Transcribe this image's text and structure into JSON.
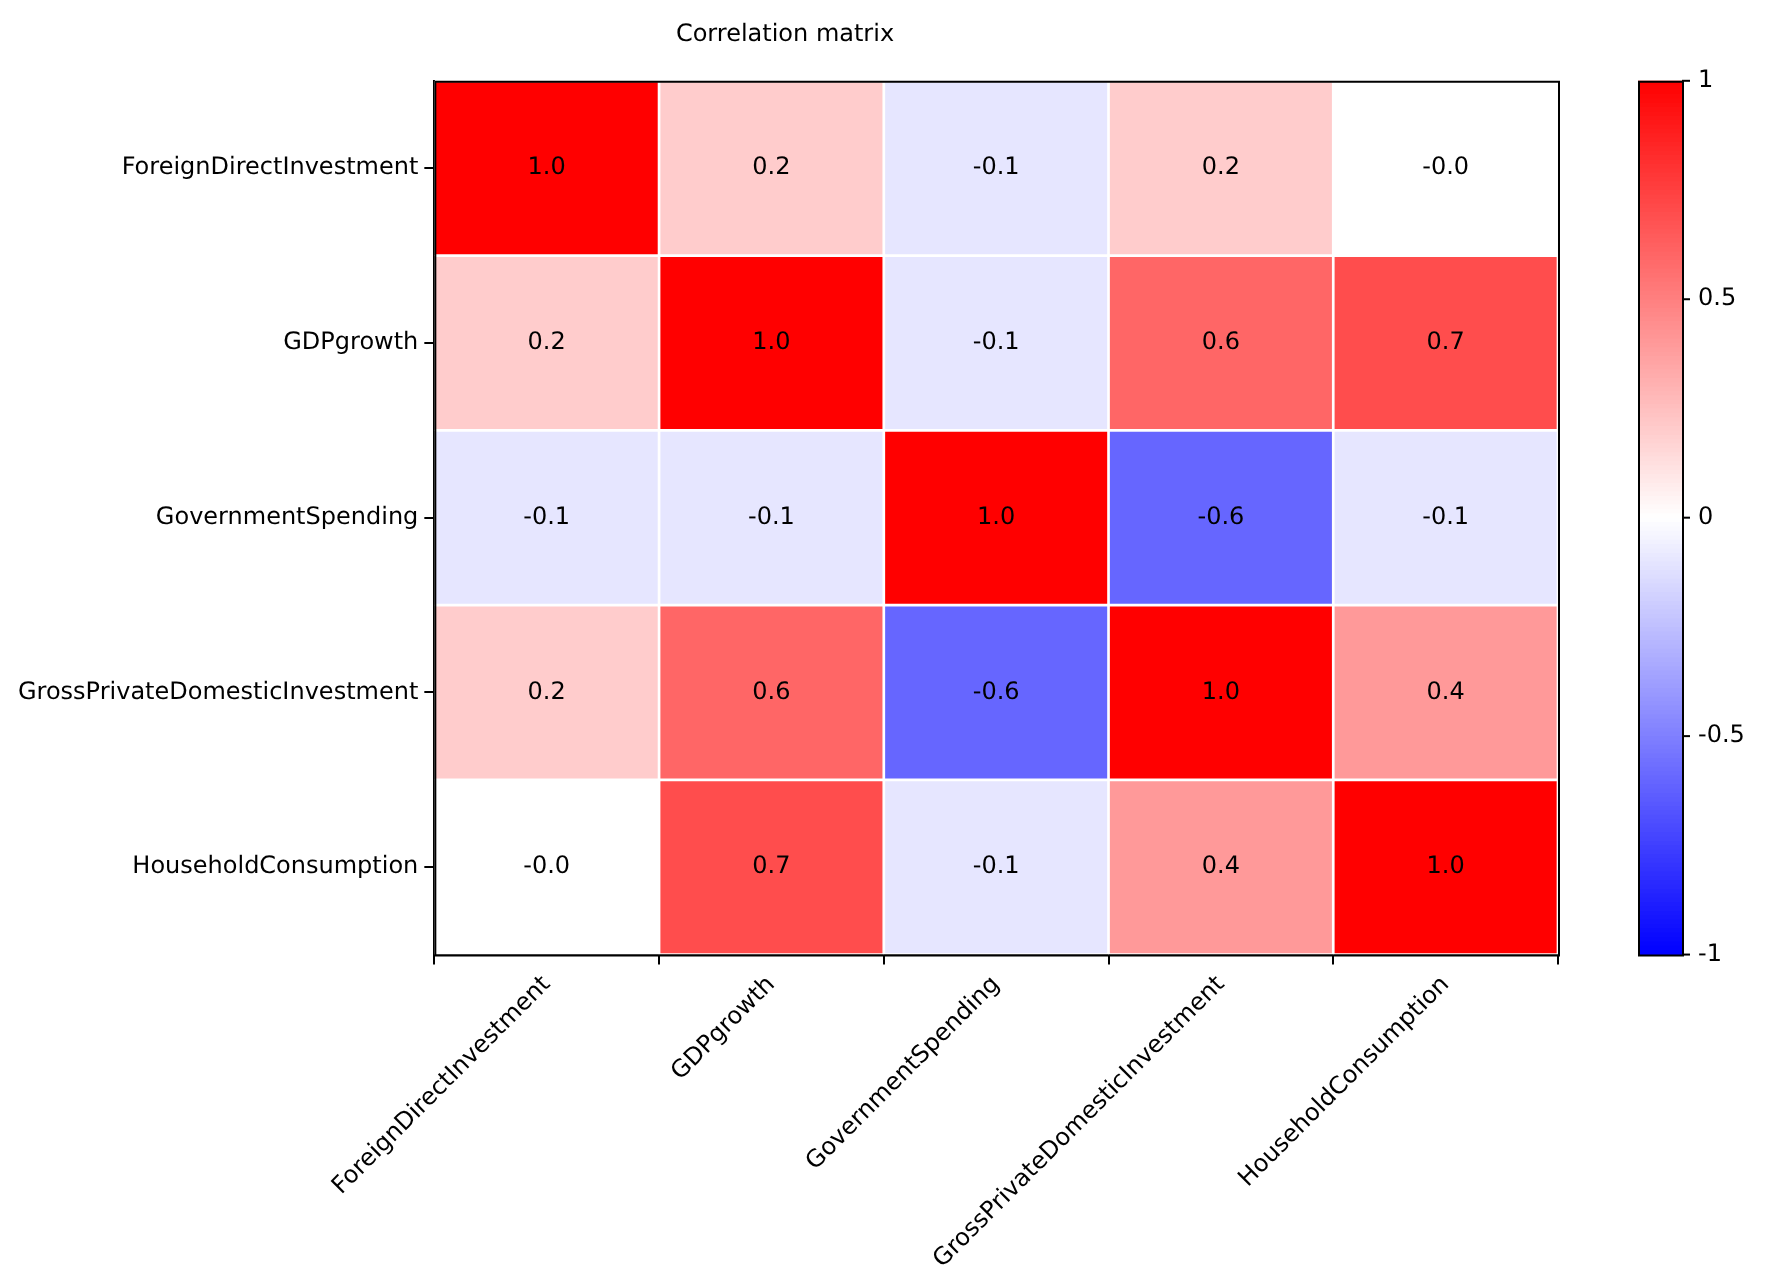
{
  "chart_data": {
    "type": "heatmap",
    "title": "Correlation matrix",
    "categories": [
      "ForeignDirectInvestment",
      "GDPgrowth",
      "GovernmentSpending",
      "GrossPrivateDomesticInvestment",
      "HouseholdConsumption"
    ],
    "y_categories": [
      "ForeignDirectInvestment",
      "GDPgrowth",
      "GovernmentSpending",
      "GrossPrivateDomesticInvestment",
      "HouseholdConsumption"
    ],
    "cells": [
      [
        1.0,
        0.2,
        -0.1,
        0.2,
        -0.0
      ],
      [
        0.2,
        1.0,
        -0.1,
        0.6,
        0.7
      ],
      [
        -0.1,
        -0.1,
        1.0,
        -0.6,
        -0.1
      ],
      [
        0.2,
        0.6,
        -0.6,
        1.0,
        0.4
      ],
      [
        -0.0,
        0.7,
        -0.1,
        0.4,
        1.0
      ]
    ],
    "cell_labels": [
      [
        "1.0",
        "0.2",
        "-0.1",
        "0.2",
        "-0.0"
      ],
      [
        "0.2",
        "1.0",
        "-0.1",
        "0.6",
        "0.7"
      ],
      [
        "-0.1",
        "-0.1",
        "1.0",
        "-0.6",
        "-0.1"
      ],
      [
        "0.2",
        "0.6",
        "-0.6",
        "1.0",
        "0.4"
      ],
      [
        "-0.0",
        "0.7",
        "-0.1",
        "0.4",
        "1.0"
      ]
    ],
    "clim": [
      -1,
      1
    ],
    "cticks": [
      {
        "value": 1,
        "label": "1"
      },
      {
        "value": 0.5,
        "label": "0.5"
      },
      {
        "value": 0,
        "label": "0"
      },
      {
        "value": -0.5,
        "label": "-0.5"
      },
      {
        "value": -1,
        "label": "-1"
      }
    ]
  }
}
